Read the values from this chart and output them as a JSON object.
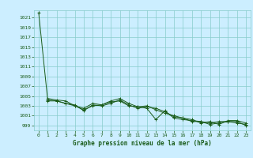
{
  "title": "Graphe pression niveau de la mer (hPa)",
  "background_color": "#cceeff",
  "grid_color": "#88cccc",
  "line_color": "#1a5c1a",
  "xlim": [
    -0.5,
    23.5
  ],
  "ylim": [
    998,
    1022.5
  ],
  "ytick_labels": [
    "999",
    "1001",
    "1003",
    "1005",
    "1007",
    "1009",
    "1011",
    "1013",
    "1015",
    "1017",
    "1019",
    "1021"
  ],
  "ytick_vals": [
    999,
    1001,
    1003,
    1005,
    1007,
    1009,
    1011,
    1013,
    1015,
    1017,
    1019,
    1021
  ],
  "xtick_vals": [
    0,
    1,
    2,
    3,
    4,
    5,
    6,
    7,
    8,
    9,
    10,
    11,
    12,
    13,
    14,
    15,
    16,
    17,
    18,
    19,
    20,
    21,
    22,
    23
  ],
  "series1": [
    [
      0,
      1022.0
    ],
    [
      1,
      1004.2
    ],
    [
      2,
      1004.0
    ],
    [
      3,
      1003.5
    ],
    [
      4,
      1003.0
    ],
    [
      5,
      1002.2
    ],
    [
      6,
      1003.0
    ],
    [
      7,
      1003.2
    ],
    [
      8,
      1003.8
    ],
    [
      9,
      1004.0
    ],
    [
      10,
      1003.0
    ],
    [
      11,
      1002.8
    ],
    [
      12,
      1002.5
    ],
    [
      13,
      1000.2
    ],
    [
      14,
      1002.0
    ],
    [
      15,
      1000.5
    ],
    [
      16,
      1000.2
    ],
    [
      17,
      1000.0
    ],
    [
      18,
      999.8
    ],
    [
      19,
      999.5
    ],
    [
      20,
      999.8
    ],
    [
      21,
      999.8
    ],
    [
      22,
      999.5
    ],
    [
      23,
      999.2
    ]
  ],
  "series2": [
    [
      1,
      1004.0
    ],
    [
      2,
      1004.0
    ],
    [
      3,
      1003.5
    ],
    [
      4,
      1003.2
    ],
    [
      5,
      1002.0
    ],
    [
      6,
      1003.2
    ],
    [
      7,
      1003.0
    ],
    [
      8,
      1003.5
    ],
    [
      9,
      1004.2
    ],
    [
      10,
      1003.2
    ],
    [
      11,
      1002.5
    ],
    [
      12,
      1002.8
    ],
    [
      13,
      1002.5
    ],
    [
      14,
      1001.8
    ],
    [
      15,
      1000.8
    ],
    [
      16,
      1000.5
    ],
    [
      17,
      999.8
    ],
    [
      18,
      999.8
    ],
    [
      19,
      999.2
    ],
    [
      20,
      999.5
    ],
    [
      21,
      999.8
    ],
    [
      22,
      999.8
    ],
    [
      23,
      999.0
    ]
  ],
  "series3": [
    [
      1,
      1004.5
    ],
    [
      2,
      1004.2
    ],
    [
      3,
      1004.0
    ],
    [
      4,
      1003.0
    ],
    [
      5,
      1002.5
    ],
    [
      6,
      1003.5
    ],
    [
      7,
      1003.2
    ],
    [
      8,
      1004.0
    ],
    [
      9,
      1004.5
    ],
    [
      10,
      1003.5
    ],
    [
      11,
      1002.8
    ],
    [
      12,
      1003.0
    ],
    [
      13,
      1002.2
    ],
    [
      14,
      1001.5
    ],
    [
      15,
      1001.0
    ],
    [
      16,
      1000.5
    ],
    [
      17,
      1000.2
    ],
    [
      18,
      999.5
    ],
    [
      19,
      999.8
    ],
    [
      20,
      999.2
    ],
    [
      21,
      1000.0
    ],
    [
      22,
      1000.0
    ],
    [
      23,
      999.5
    ]
  ]
}
